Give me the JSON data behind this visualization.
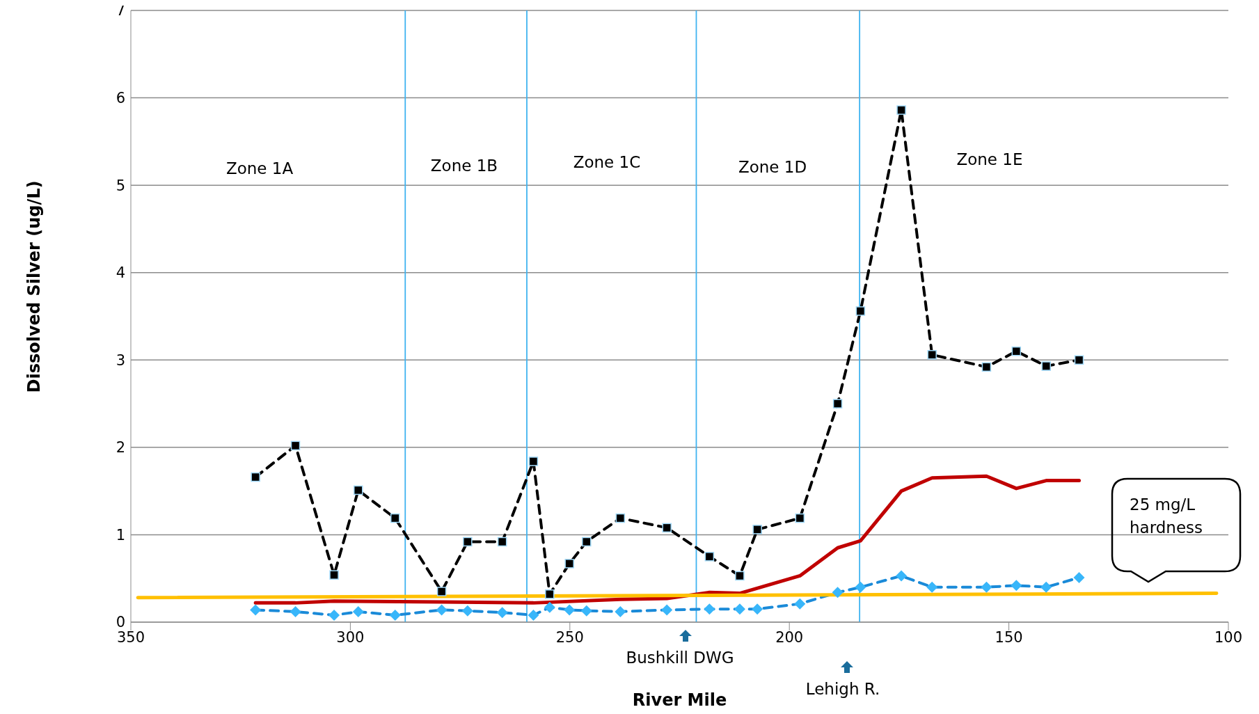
{
  "chart_data": {
    "type": "line",
    "xlabel": "River Mile",
    "ylabel": "Dissolved  Silver (ug/L)",
    "xlim": [
      350,
      100
    ],
    "xticks": [
      350,
      300,
      250,
      200,
      150,
      100
    ],
    "ylim": [
      0,
      7
    ],
    "yticks": [
      0,
      1,
      2,
      3,
      4,
      5,
      6,
      7
    ],
    "grid": "y",
    "series": [
      {
        "color": "#000000",
        "marker": "square",
        "line_style": "dashed",
        "x": [
          321.6,
          312.5,
          303.7,
          298.2,
          289.8,
          279.2,
          273.3,
          265.4,
          258.3,
          254.6,
          250.1,
          246.2,
          238.5,
          227.9,
          218.2,
          211.3,
          207.3,
          197.6,
          189.0,
          183.8,
          174.5,
          167.5,
          155.1,
          148.3,
          141.5,
          134.0
        ],
        "values": [
          1.66,
          2.02,
          0.54,
          1.51,
          1.19,
          0.35,
          0.92,
          0.92,
          1.84,
          0.32,
          0.67,
          0.92,
          1.19,
          1.08,
          0.75,
          0.53,
          1.06,
          1.19,
          2.5,
          3.56,
          5.86,
          3.06,
          2.92,
          3.1,
          2.93,
          3.0
        ]
      },
      {
        "color": "#1a8ad8",
        "marker": "diamond",
        "line_style": "dashed",
        "x": [
          321.6,
          312.5,
          303.7,
          298.2,
          289.8,
          279.2,
          273.3,
          265.4,
          258.3,
          254.6,
          250.1,
          246.2,
          238.5,
          227.9,
          218.2,
          211.3,
          207.3,
          197.6,
          189.0,
          183.8,
          174.5,
          167.5,
          155.1,
          148.3,
          141.5,
          134.0
        ],
        "values": [
          0.14,
          0.12,
          0.08,
          0.12,
          0.08,
          0.14,
          0.13,
          0.11,
          0.08,
          0.17,
          0.14,
          0.13,
          0.12,
          0.14,
          0.15,
          0.15,
          0.15,
          0.21,
          0.34,
          0.4,
          0.53,
          0.4,
          0.4,
          0.42,
          0.4,
          0.51
        ]
      },
      {
        "color": "#c00000",
        "marker": "none",
        "line_style": "solid",
        "x": [
          321.6,
          312.5,
          303.7,
          279.2,
          258.3,
          238.5,
          227.9,
          218.2,
          211.3,
          197.6,
          189.0,
          183.8,
          174.5,
          167.5,
          155.1,
          148.3,
          141.5,
          134.0
        ],
        "values": [
          0.22,
          0.22,
          0.24,
          0.23,
          0.22,
          0.26,
          0.27,
          0.34,
          0.33,
          0.53,
          0.85,
          0.93,
          1.5,
          1.65,
          1.67,
          1.53,
          1.62,
          1.62
        ]
      },
      {
        "color": "#ffc000",
        "marker": "none",
        "line_style": "solid",
        "x": [
          348.4,
          102.7
        ],
        "values": [
          0.28,
          0.33
        ]
      }
    ],
    "ref_lines": [
      {
        "axis": "x",
        "value": 287.5,
        "color": "#3fb3f0"
      },
      {
        "axis": "x",
        "value": 259.8,
        "color": "#3fb3f0"
      },
      {
        "axis": "x",
        "value": 221.2,
        "color": "#3fb3f0"
      },
      {
        "axis": "x",
        "value": 184.0,
        "color": "#3fb3f0"
      }
    ],
    "annotations": [
      "Zone 1A",
      "Zone 1B",
      "Zone 1C",
      "Zone 1D",
      "Zone 1E",
      "Bushkill DWG",
      "Lehigh R.",
      "25 mg/L\nhardness"
    ]
  }
}
